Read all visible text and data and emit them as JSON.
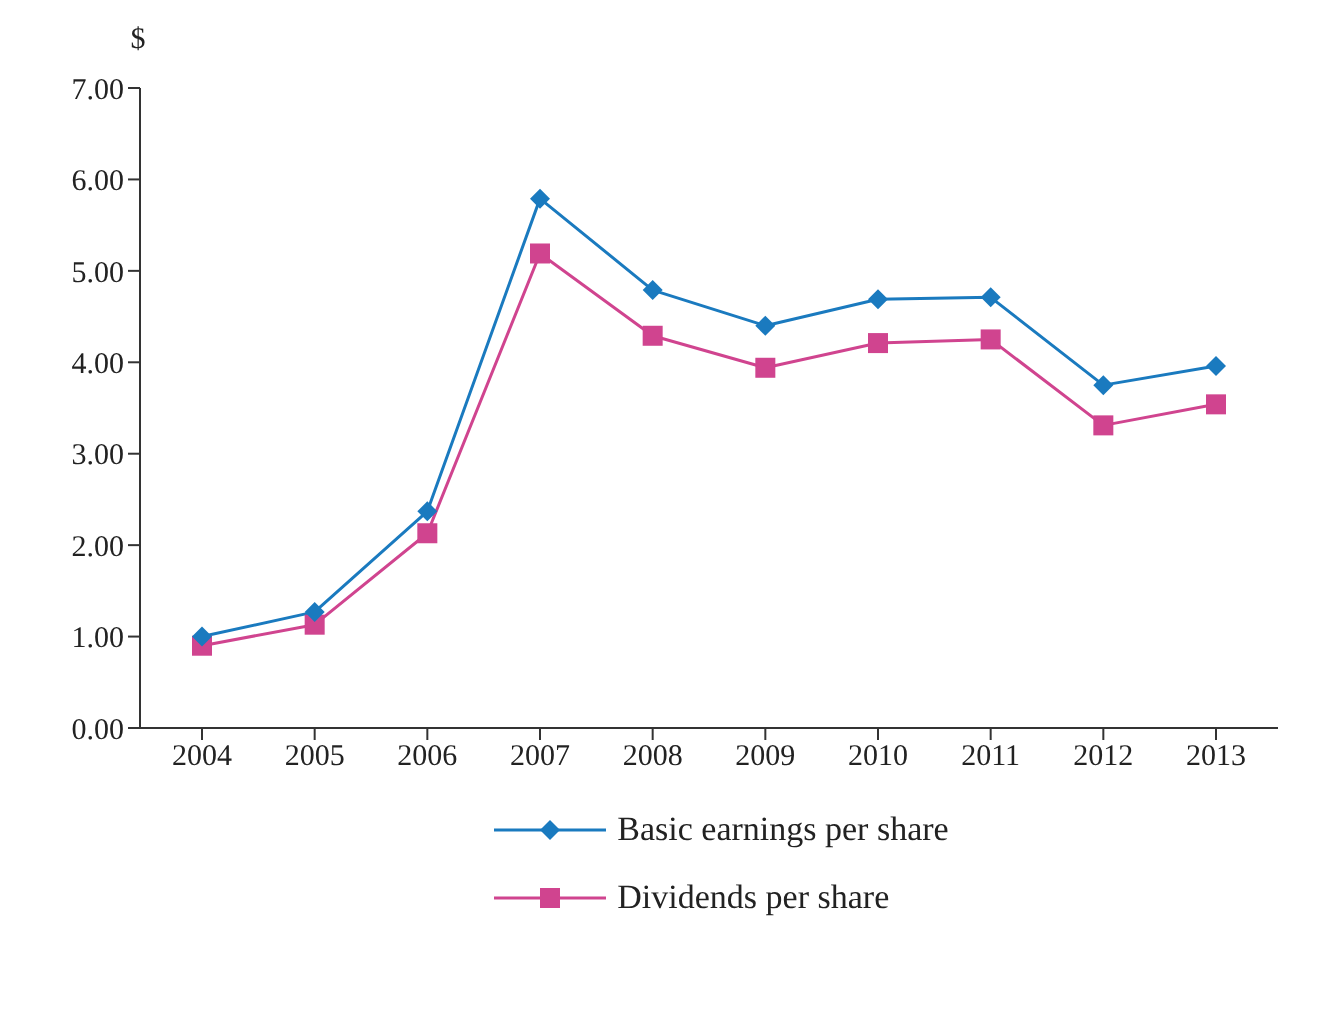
{
  "chart_data": {
    "type": "line",
    "ylabel": "$",
    "categories": [
      "2004",
      "2005",
      "2006",
      "2007",
      "2008",
      "2009",
      "2010",
      "2011",
      "2012",
      "2013"
    ],
    "series": [
      {
        "name": "Basic earnings per share",
        "color": "#1a7abf",
        "marker": "diamond",
        "values": [
          1.0,
          1.27,
          2.37,
          5.79,
          4.79,
          4.4,
          4.69,
          4.71,
          3.75,
          3.96
        ]
      },
      {
        "name": "Dividends per share",
        "color": "#d0448f",
        "marker": "square",
        "values": [
          0.9,
          1.13,
          2.13,
          5.19,
          4.29,
          3.94,
          4.21,
          4.25,
          3.31,
          3.54
        ]
      }
    ],
    "ylim": [
      0,
      7
    ],
    "yticks": [
      {
        "value": 0,
        "label": "0.00"
      },
      {
        "value": 1,
        "label": "1.00"
      },
      {
        "value": 2,
        "label": "2.00"
      },
      {
        "value": 3,
        "label": "3.00"
      },
      {
        "value": 4,
        "label": "4.00"
      },
      {
        "value": 5,
        "label": "5.00"
      },
      {
        "value": 6,
        "label": "6.00"
      },
      {
        "value": 7,
        "label": "7.00"
      }
    ],
    "grid": false,
    "legend": "bottom",
    "line_style": "solid"
  }
}
